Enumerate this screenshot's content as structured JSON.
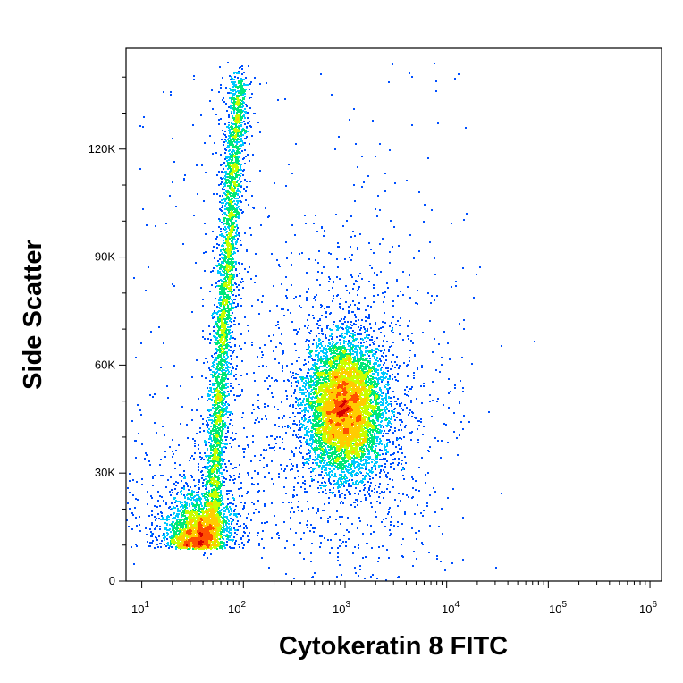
{
  "chart_data": {
    "type": "scatter",
    "subtype": "flow-cytometry-density-dot-plot",
    "xlabel": "Cytokeratin 8 FITC",
    "ylabel": "Side Scatter",
    "x_scale": "log",
    "xlim": [
      7,
      1300000
    ],
    "ylim": [
      0,
      148000
    ],
    "x_ticks": [
      {
        "base": "10",
        "exp": "1",
        "value": 10
      },
      {
        "base": "10",
        "exp": "2",
        "value": 100
      },
      {
        "base": "10",
        "exp": "3",
        "value": 1000
      },
      {
        "base": "10",
        "exp": "4",
        "value": 10000
      },
      {
        "base": "10",
        "exp": "5",
        "value": 100000
      },
      {
        "base": "10",
        "exp": "6",
        "value": 1000000
      }
    ],
    "y_ticks": [
      {
        "label": "0",
        "value": 0
      },
      {
        "label": "30K",
        "value": 30000
      },
      {
        "label": "60K",
        "value": 60000
      },
      {
        "label": "90K",
        "value": 90000
      },
      {
        "label": "120K",
        "value": 120000
      }
    ],
    "grid": false,
    "colormap": [
      "#0000c8",
      "#0050ff",
      "#00c8ff",
      "#00e878",
      "#c8ff00",
      "#ffcc00",
      "#ff5000",
      "#d40000"
    ],
    "populations": [
      {
        "description": "negative, low side scatter",
        "center_x": 35,
        "center_y": 9000,
        "count": 2200
      },
      {
        "description": "negative, high side scatter streak",
        "center_x": 75,
        "center_y": 75000,
        "count": 3400
      },
      {
        "description": "Cytokeratin 8 positive",
        "center_x": 1000,
        "center_y": 48000,
        "count": 7000
      }
    ]
  }
}
